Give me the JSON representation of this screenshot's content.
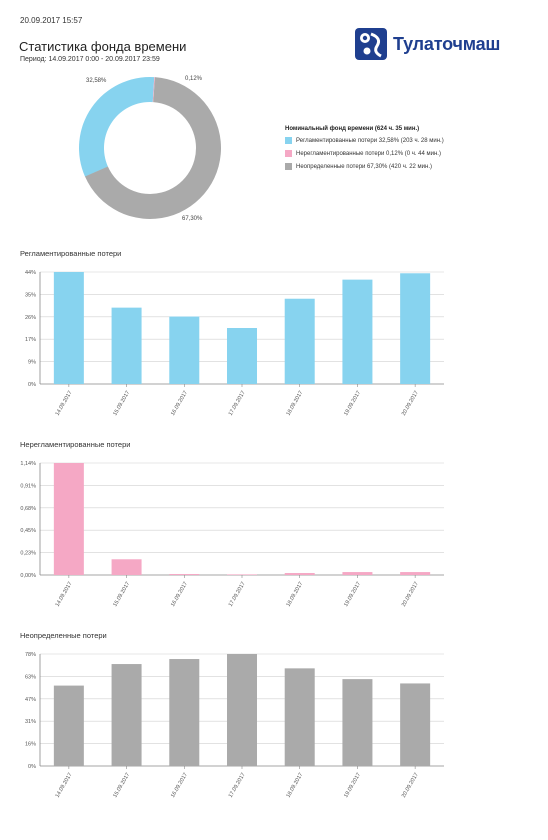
{
  "header": {
    "timestamp": "20.09.2017 15:57",
    "title": "Статистика фонда времени",
    "period": "Период: 14.09.2017 0:00 - 20.09.2017 23:59",
    "logo_text": "Тулаточмаш"
  },
  "chart_data": [
    {
      "type": "pie",
      "variant": "donut",
      "legend_title": "Номинальный фонд времени (624 ч. 35 мин.)",
      "legend_placement": "right",
      "slices": [
        {
          "legend": "Регламентированные потери 32,58% (203 ч. 28 мин.)",
          "label": "32,58%",
          "value": 32.58,
          "color": "#87d3ef"
        },
        {
          "legend": "Нерегламентированные потери 0,12% (0 ч. 44 мин.)",
          "label": "0,12%",
          "value": 0.12,
          "color": "#f5a8c5"
        },
        {
          "legend": "Неопределенные потери 67,30% (420 ч. 22 мин.)",
          "label": "67,30%",
          "value": 67.3,
          "color": "#aaaaaa"
        }
      ]
    },
    {
      "type": "bar",
      "title": "Регламентированные потери",
      "color": "#87d3ef",
      "categories": [
        "14.09.2017",
        "15.09.2017",
        "16.09.2017",
        "17.09.2017",
        "18.09.2017",
        "19.09.2017",
        "20.09.2017"
      ],
      "values": [
        44,
        30,
        26.5,
        22,
        33.5,
        41,
        43.5
      ],
      "yticks": [
        "0%",
        "9%",
        "17%",
        "26%",
        "35%",
        "44%"
      ],
      "ylim": [
        0,
        44
      ],
      "grid": true
    },
    {
      "type": "bar",
      "title": "Нерегламентированные потери",
      "color": "#f5a8c5",
      "categories": [
        "14.09.2017",
        "15.09.2017",
        "16.09.2017",
        "17.09.2017",
        "18.09.2017",
        "19.09.2017",
        "20.09.2017"
      ],
      "values": [
        1.14,
        0.16,
        0.01,
        0.0,
        0.02,
        0.03,
        0.03
      ],
      "yticks": [
        "0,00%",
        "0,23%",
        "0,45%",
        "0,68%",
        "0,91%",
        "1,14%"
      ],
      "ylim": [
        0,
        1.14
      ],
      "grid": true
    },
    {
      "type": "bar",
      "title": "Неопределенные потери",
      "color": "#aaaaaa",
      "categories": [
        "14.09.2017",
        "15.09.2017",
        "16.09.2017",
        "17.09.2017",
        "18.09.2017",
        "19.09.2017",
        "20.09.2017"
      ],
      "values": [
        56,
        71,
        74.5,
        78,
        68,
        60.5,
        57.5
      ],
      "yticks": [
        "0%",
        "16%",
        "31%",
        "47%",
        "63%",
        "78%"
      ],
      "ylim": [
        0,
        78
      ],
      "grid": true
    }
  ]
}
